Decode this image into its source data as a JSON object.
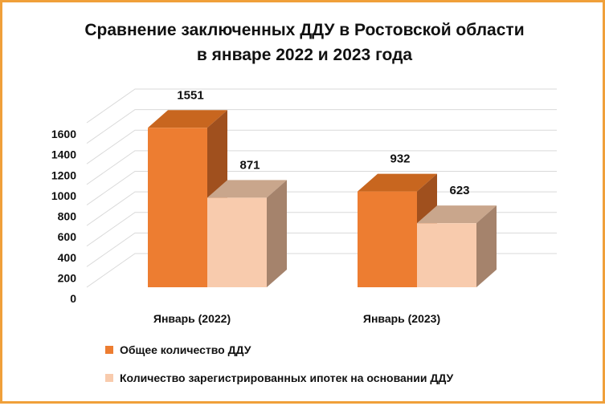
{
  "chart_data": {
    "type": "bar",
    "title_lines": [
      "Сравнение заключенных ДДУ в Ростовской области",
      "в январе 2022 и 2023 года"
    ],
    "categories": [
      "Январь (2022)",
      "Январь (2023)"
    ],
    "series": [
      {
        "name": "Общее количество ДДУ",
        "values": [
          1551,
          932
        ],
        "color": "#ed7d31",
        "side_color": "#a0501e",
        "top_color": "#c8661f"
      },
      {
        "name": "Количество зарегистрированных ипотек на основании ДДУ",
        "values": [
          871,
          623
        ],
        "color": "#f8cbad",
        "side_color": "#a5836c",
        "top_color": "#c9a68c"
      }
    ],
    "yticks": [
      0,
      200,
      400,
      600,
      800,
      1000,
      1200,
      1400,
      1600
    ],
    "ylim": [
      0,
      1600
    ],
    "grid": true,
    "legend_position": "bottom-left",
    "style": "3d-clustered-column"
  }
}
